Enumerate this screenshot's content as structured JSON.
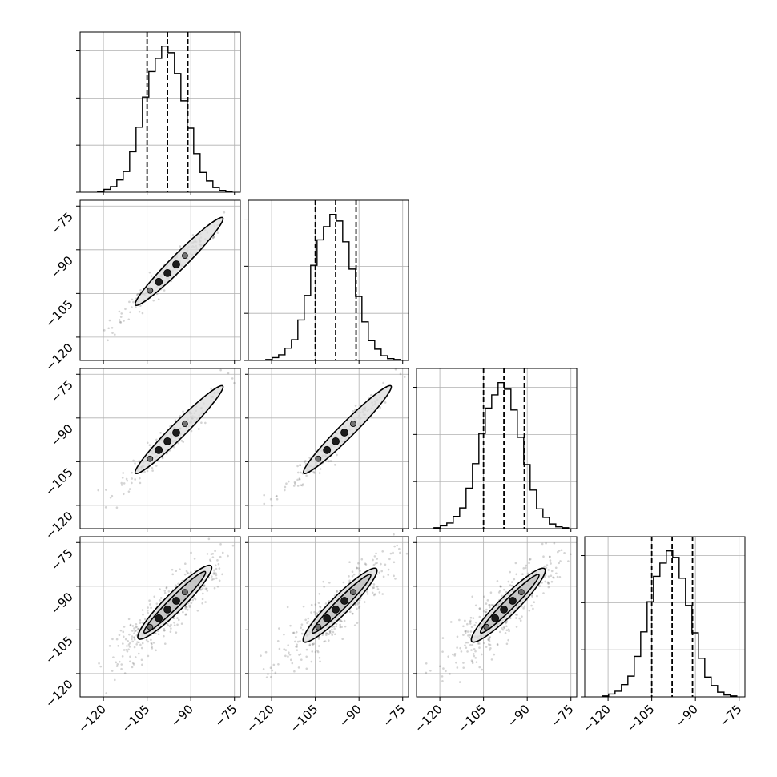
{
  "chart_data": {
    "type": "corner",
    "title": "",
    "n_params": 4,
    "grid": true,
    "colors": {
      "line": "#000000",
      "grid": "#b0b0b0",
      "scatter": "#555555",
      "density": "#000000"
    },
    "axis_range": [
      -128,
      -73
    ],
    "ticks": [
      -120,
      -105,
      -90,
      -75
    ],
    "tick_labels": [
      "−120",
      "−105",
      "−90",
      "−75"
    ],
    "quantiles": {
      "note_levels": [
        "16%",
        "50%",
        "84%"
      ],
      "values": [
        -105,
        -98,
        -91
      ]
    },
    "histograms": [
      {
        "param": 1,
        "bin_edges": [
          -122,
          -119.8,
          -117.6,
          -115.4,
          -113.2,
          -111,
          -108.8,
          -106.6,
          -104.4,
          -102.2,
          -100,
          -97.8,
          -95.6,
          -93.4,
          -91.2,
          -89,
          -86.8,
          -84.6,
          -82.4,
          -80.2,
          -78,
          -75.8
        ],
        "counts": [
          1,
          3,
          6,
          13,
          22,
          43,
          69,
          101,
          128,
          142,
          155,
          148,
          126,
          97,
          68,
          41,
          21,
          12,
          5,
          2,
          1
        ],
        "ymax": 170,
        "yticks": [
          0,
          50,
          100,
          150
        ],
        "quantiles": [
          -105,
          -98,
          -91
        ]
      },
      {
        "param": 2,
        "bin_edges": [
          -122,
          -119.8,
          -117.6,
          -115.4,
          -113.2,
          -111,
          -108.8,
          -106.6,
          -104.4,
          -102.2,
          -100,
          -97.8,
          -95.6,
          -93.4,
          -91.2,
          -89,
          -86.8,
          -84.6,
          -82.4,
          -80.2,
          -78,
          -75.8
        ],
        "counts": [
          1,
          3,
          6,
          13,
          22,
          43,
          69,
          101,
          128,
          142,
          155,
          148,
          126,
          97,
          68,
          41,
          21,
          12,
          5,
          2,
          1
        ],
        "ymax": 170,
        "yticks": [
          0,
          50,
          100,
          150
        ],
        "quantiles": [
          -105,
          -98,
          -91
        ]
      },
      {
        "param": 3,
        "bin_edges": [
          -122,
          -119.8,
          -117.6,
          -115.4,
          -113.2,
          -111,
          -108.8,
          -106.6,
          -104.4,
          -102.2,
          -100,
          -97.8,
          -95.6,
          -93.4,
          -91.2,
          -89,
          -86.8,
          -84.6,
          -82.4,
          -80.2,
          -78,
          -75.8
        ],
        "counts": [
          1,
          3,
          6,
          13,
          22,
          43,
          69,
          101,
          128,
          142,
          155,
          148,
          126,
          97,
          68,
          41,
          21,
          12,
          5,
          2,
          1
        ],
        "ymax": 170,
        "yticks": [
          0,
          50,
          100,
          150
        ],
        "quantiles": [
          -105,
          -98,
          -91
        ]
      },
      {
        "param": 4,
        "bin_edges": [
          -122,
          -119.8,
          -117.6,
          -115.4,
          -113.2,
          -111,
          -108.8,
          -106.6,
          -104.4,
          -102.2,
          -100,
          -97.8,
          -95.6,
          -93.4,
          -91.2,
          -89,
          -86.8,
          -84.6,
          -82.4,
          -80.2,
          -78,
          -75.8
        ],
        "counts": [
          1,
          3,
          6,
          13,
          22,
          43,
          69,
          101,
          128,
          142,
          155,
          148,
          126,
          97,
          68,
          41,
          21,
          12,
          5,
          2,
          1
        ],
        "ymax": 170,
        "yticks": [
          0,
          50,
          100,
          150
        ],
        "quantiles": [
          -105,
          -98,
          -91
        ]
      }
    ],
    "pairs": [
      {
        "row": 2,
        "col": 1,
        "width_frac": 0.12,
        "contours": [
          {
            "x": [
              -109,
              -79
            ],
            "y": [
              -109,
              -79
            ]
          }
        ]
      },
      {
        "row": 3,
        "col": 1,
        "width_frac": 0.12,
        "contours": [
          {
            "x": [
              -109,
              -79
            ],
            "y": [
              -109,
              -79
            ]
          }
        ]
      },
      {
        "row": 3,
        "col": 2,
        "width_frac": 0.12,
        "contours": [
          {
            "x": [
              -109,
              -79
            ],
            "y": [
              -109,
              -79
            ]
          }
        ]
      },
      {
        "row": 4,
        "col": 1,
        "width_frac": 0.18,
        "contours": [
          {
            "x": [
              -108,
              -83
            ],
            "y": [
              -108,
              -83
            ]
          },
          {
            "x": [
              -106,
              -85
            ],
            "y": [
              -106,
              -85
            ]
          }
        ]
      },
      {
        "row": 4,
        "col": 2,
        "width_frac": 0.18,
        "contours": [
          {
            "x": [
              -109,
              -84
            ],
            "y": [
              -109,
              -84
            ]
          },
          {
            "x": [
              -106,
              -86
            ],
            "y": [
              -106,
              -86
            ]
          }
        ]
      },
      {
        "row": 4,
        "col": 3,
        "width_frac": 0.18,
        "contours": [
          {
            "x": [
              -109,
              -84
            ],
            "y": [
              -109,
              -84
            ]
          },
          {
            "x": [
              -106,
              -86
            ],
            "y": [
              -106,
              -86
            ]
          }
        ]
      }
    ],
    "density_points_along_diagonal": [
      -104,
      -101,
      -98,
      -95,
      -92
    ],
    "scatter_extent": [
      -123,
      -75
    ]
  }
}
